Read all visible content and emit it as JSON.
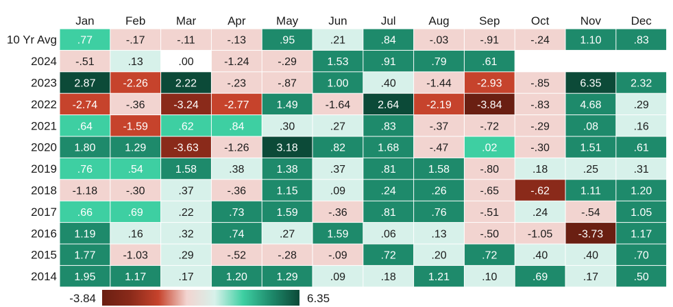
{
  "chart_data": {
    "type": "heatmap",
    "title": "",
    "columns": [
      "Jan",
      "Feb",
      "Mar",
      "Apr",
      "May",
      "Jun",
      "Jul",
      "Aug",
      "Sep",
      "Oct",
      "Nov",
      "Dec"
    ],
    "rows": [
      "10 Yr Avg",
      "2024",
      "2023",
      "2022",
      "2021",
      "2020",
      "2019",
      "2018",
      "2017",
      "2016",
      "2015",
      "2014"
    ],
    "values": [
      [
        0.77,
        -0.17,
        -0.11,
        -0.13,
        0.95,
        0.21,
        0.84,
        -0.03,
        -0.91,
        -0.24,
        1.1,
        0.83
      ],
      [
        -0.51,
        0.13,
        0.0,
        -1.24,
        -0.29,
        1.53,
        0.91,
        0.79,
        0.61,
        null,
        null,
        null
      ],
      [
        2.87,
        -2.26,
        2.22,
        -0.23,
        -0.87,
        1.0,
        0.4,
        -1.44,
        -2.93,
        -0.85,
        6.35,
        2.32
      ],
      [
        -2.74,
        -0.36,
        -3.24,
        -2.77,
        1.49,
        -1.64,
        2.64,
        -2.19,
        -3.84,
        -0.83,
        4.68,
        0.29
      ],
      [
        0.64,
        -1.59,
        0.62,
        0.84,
        0.3,
        0.27,
        0.83,
        -0.37,
        -0.72,
        -0.29,
        0.08,
        0.16
      ],
      [
        1.8,
        1.29,
        -3.63,
        -1.26,
        3.18,
        0.82,
        1.68,
        -0.47,
        0.02,
        -0.3,
        1.51,
        0.61
      ],
      [
        0.76,
        0.54,
        1.58,
        0.38,
        1.38,
        0.37,
        0.81,
        1.58,
        -0.8,
        0.18,
        0.25,
        0.31
      ],
      [
        -1.18,
        -0.3,
        0.37,
        -0.36,
        1.15,
        0.09,
        0.24,
        0.26,
        -0.65,
        -0.62,
        1.11,
        1.2
      ],
      [
        0.66,
        0.69,
        0.22,
        0.73,
        1.59,
        -0.36,
        0.81,
        0.76,
        -0.51,
        0.24,
        -0.54,
        1.05
      ],
      [
        1.19,
        0.16,
        0.32,
        0.74,
        0.27,
        1.59,
        0.06,
        0.13,
        -0.5,
        -1.05,
        -3.73,
        1.17
      ],
      [
        1.77,
        -1.03,
        0.29,
        -0.52,
        -0.28,
        -0.09,
        0.72,
        0.2,
        0.72,
        0.4,
        0.4,
        0.7
      ],
      [
        1.95,
        1.17,
        0.17,
        1.2,
        1.29,
        0.09,
        0.18,
        1.21,
        0.1,
        0.69,
        0.17,
        0.5
      ]
    ],
    "labels": [
      [
        ".77",
        "-.17",
        "-.11",
        "-.13",
        ".95",
        ".21",
        ".84",
        "-.03",
        "-.91",
        "-.24",
        "1.10",
        ".83"
      ],
      [
        "-.51",
        ".13",
        ".00",
        "-1.24",
        "-.29",
        "1.53",
        ".91",
        ".79",
        ".61",
        null,
        null,
        null
      ],
      [
        "2.87",
        "-2.26",
        "2.22",
        "-.23",
        "-.87",
        "1.00",
        ".40",
        "-1.44",
        "-2.93",
        "-.85",
        "6.35",
        "2.32"
      ],
      [
        "-2.74",
        "-.36",
        "-3.24",
        "-2.77",
        "1.49",
        "-1.64",
        "2.64",
        "-2.19",
        "-3.84",
        "-.83",
        "4.68",
        ".29"
      ],
      [
        ".64",
        "-1.59",
        ".62",
        ".84",
        ".30",
        ".27",
        ".83",
        "-.37",
        "-.72",
        "-.29",
        ".08",
        ".16"
      ],
      [
        "1.80",
        "1.29",
        "-3.63",
        "-1.26",
        "3.18",
        ".82",
        "1.68",
        "-.47",
        ".02",
        "-.30",
        "1.51",
        ".61"
      ],
      [
        ".76",
        ".54",
        "1.58",
        ".38",
        "1.38",
        ".37",
        ".81",
        "1.58",
        "-.80",
        ".18",
        ".25",
        ".31"
      ],
      [
        "-1.18",
        "-.30",
        ".37",
        "-.36",
        "1.15",
        ".09",
        ".24",
        ".26",
        "-.65",
        "-.62",
        "1.11",
        "1.20"
      ],
      [
        ".66",
        ".69",
        ".22",
        ".73",
        "1.59",
        "-.36",
        ".81",
        ".76",
        "-.51",
        ".24",
        "-.54",
        "1.05"
      ],
      [
        "1.19",
        ".16",
        ".32",
        ".74",
        ".27",
        "1.59",
        ".06",
        ".13",
        "-.50",
        "-1.05",
        "-3.73",
        "1.17"
      ],
      [
        "1.77",
        "-1.03",
        ".29",
        "-.52",
        "-.28",
        "-.09",
        ".72",
        ".20",
        ".72",
        ".40",
        ".40",
        ".70"
      ],
      [
        "1.95",
        "1.17",
        ".17",
        "1.20",
        "1.29",
        ".09",
        ".18",
        "1.21",
        ".10",
        ".69",
        ".17",
        ".50"
      ]
    ],
    "cell_colors": [
      [
        "#3ecfa2",
        "#f2d4d0",
        "#f2d4d0",
        "#f2d4d0",
        "#1e8a6b",
        "#d7f1ea",
        "#1e8a6b",
        "#f2d4d0",
        "#f2d4d0",
        "#f2d4d0",
        "#1e8a6b",
        "#1e8a6b"
      ],
      [
        "#f2d4d0",
        "#d7f1ea",
        "#ffffff",
        "#f2d4d0",
        "#f2d4d0",
        "#1e8a6b",
        "#1e8a6b",
        "#1e8a6b",
        "#1e8a6b",
        null,
        null,
        null
      ],
      [
        "#0c4a38",
        "#c6432c",
        "#0c4a38",
        "#f2d4d0",
        "#f2d4d0",
        "#1e8a6b",
        "#d7f1ea",
        "#f2d4d0",
        "#c6432c",
        "#f2d4d0",
        "#0c4a38",
        "#1e8a6b"
      ],
      [
        "#c6432c",
        "#f2d4d0",
        "#8a2a1a",
        "#c6432c",
        "#1e8a6b",
        "#f2d4d0",
        "#0c4a38",
        "#c6432c",
        "#6a1f12",
        "#f2d4d0",
        "#1e8a6b",
        "#d7f1ea"
      ],
      [
        "#3ecfa2",
        "#c6432c",
        "#3ecfa2",
        "#3ecfa2",
        "#d7f1ea",
        "#d7f1ea",
        "#1e8a6b",
        "#f2d4d0",
        "#f2d4d0",
        "#f2d4d0",
        "#1e8a6b",
        "#d7f1ea"
      ],
      [
        "#1e8a6b",
        "#1e8a6b",
        "#8a2a1a",
        "#f2d4d0",
        "#0c4a38",
        "#1e8a6b",
        "#1e8a6b",
        "#f2d4d0",
        "#3ecfa2",
        "#f2d4d0",
        "#1e8a6b",
        "#1e8a6b"
      ],
      [
        "#3ecfa2",
        "#3ecfa2",
        "#1e8a6b",
        "#d7f1ea",
        "#1e8a6b",
        "#d7f1ea",
        "#1e8a6b",
        "#1e8a6b",
        "#f2d4d0",
        "#d7f1ea",
        "#d7f1ea",
        "#d7f1ea"
      ],
      [
        "#f2d4d0",
        "#f2d4d0",
        "#d7f1ea",
        "#f2d4d0",
        "#1e8a6b",
        "#d7f1ea",
        "#1e8a6b",
        "#1e8a6b",
        "#f2d4d0",
        "#8a2a1a",
        "#1e8a6b",
        "#1e8a6b"
      ],
      [
        "#3ecfa2",
        "#3ecfa2",
        "#d7f1ea",
        "#1e8a6b",
        "#1e8a6b",
        "#f2d4d0",
        "#1e8a6b",
        "#1e8a6b",
        "#f2d4d0",
        "#d7f1ea",
        "#f2d4d0",
        "#1e8a6b"
      ],
      [
        "#1e8a6b",
        "#d7f1ea",
        "#d7f1ea",
        "#1e8a6b",
        "#d7f1ea",
        "#1e8a6b",
        "#d7f1ea",
        "#d7f1ea",
        "#f2d4d0",
        "#f2d4d0",
        "#6a1f12",
        "#1e8a6b"
      ],
      [
        "#1e8a6b",
        "#f2d4d0",
        "#d7f1ea",
        "#f2d4d0",
        "#f2d4d0",
        "#f2d4d0",
        "#1e8a6b",
        "#d7f1ea",
        "#1e8a6b",
        "#d7f1ea",
        "#d7f1ea",
        "#1e8a6b"
      ],
      [
        "#1e8a6b",
        "#1e8a6b",
        "#d7f1ea",
        "#1e8a6b",
        "#1e8a6b",
        "#d7f1ea",
        "#d7f1ea",
        "#1e8a6b",
        "#d7f1ea",
        "#1e8a6b",
        "#d7f1ea",
        "#1e8a6b"
      ]
    ],
    "text_colors": [
      [
        "#ffffff",
        "#1a1a1a",
        "#1a1a1a",
        "#1a1a1a",
        "#ffffff",
        "#1a1a1a",
        "#ffffff",
        "#1a1a1a",
        "#1a1a1a",
        "#1a1a1a",
        "#ffffff",
        "#ffffff"
      ],
      [
        "#1a1a1a",
        "#1a1a1a",
        "#1a1a1a",
        "#1a1a1a",
        "#1a1a1a",
        "#ffffff",
        "#ffffff",
        "#ffffff",
        "#ffffff",
        null,
        null,
        null
      ],
      [
        "#ffffff",
        "#ffffff",
        "#ffffff",
        "#1a1a1a",
        "#1a1a1a",
        "#ffffff",
        "#1a1a1a",
        "#1a1a1a",
        "#ffffff",
        "#1a1a1a",
        "#ffffff",
        "#ffffff"
      ],
      [
        "#ffffff",
        "#1a1a1a",
        "#ffffff",
        "#ffffff",
        "#ffffff",
        "#1a1a1a",
        "#ffffff",
        "#ffffff",
        "#ffffff",
        "#1a1a1a",
        "#ffffff",
        "#1a1a1a"
      ],
      [
        "#ffffff",
        "#ffffff",
        "#ffffff",
        "#ffffff",
        "#1a1a1a",
        "#1a1a1a",
        "#ffffff",
        "#1a1a1a",
        "#1a1a1a",
        "#1a1a1a",
        "#ffffff",
        "#1a1a1a"
      ],
      [
        "#ffffff",
        "#ffffff",
        "#ffffff",
        "#1a1a1a",
        "#ffffff",
        "#ffffff",
        "#ffffff",
        "#1a1a1a",
        "#ffffff",
        "#1a1a1a",
        "#ffffff",
        "#ffffff"
      ],
      [
        "#ffffff",
        "#ffffff",
        "#ffffff",
        "#1a1a1a",
        "#ffffff",
        "#1a1a1a",
        "#ffffff",
        "#ffffff",
        "#1a1a1a",
        "#1a1a1a",
        "#1a1a1a",
        "#1a1a1a"
      ],
      [
        "#1a1a1a",
        "#1a1a1a",
        "#1a1a1a",
        "#1a1a1a",
        "#ffffff",
        "#1a1a1a",
        "#ffffff",
        "#ffffff",
        "#1a1a1a",
        "#ffffff",
        "#ffffff",
        "#ffffff"
      ],
      [
        "#ffffff",
        "#ffffff",
        "#1a1a1a",
        "#ffffff",
        "#ffffff",
        "#1a1a1a",
        "#ffffff",
        "#ffffff",
        "#1a1a1a",
        "#1a1a1a",
        "#1a1a1a",
        "#ffffff"
      ],
      [
        "#ffffff",
        "#1a1a1a",
        "#1a1a1a",
        "#ffffff",
        "#1a1a1a",
        "#ffffff",
        "#1a1a1a",
        "#1a1a1a",
        "#1a1a1a",
        "#1a1a1a",
        "#ffffff",
        "#ffffff"
      ],
      [
        "#ffffff",
        "#1a1a1a",
        "#1a1a1a",
        "#1a1a1a",
        "#1a1a1a",
        "#1a1a1a",
        "#ffffff",
        "#1a1a1a",
        "#ffffff",
        "#1a1a1a",
        "#1a1a1a",
        "#ffffff"
      ],
      [
        "#ffffff",
        "#ffffff",
        "#1a1a1a",
        "#ffffff",
        "#ffffff",
        "#1a1a1a",
        "#1a1a1a",
        "#ffffff",
        "#1a1a1a",
        "#ffffff",
        "#1a1a1a",
        "#ffffff"
      ]
    ],
    "colorbar": {
      "min": -3.84,
      "max": 6.35,
      "min_label": "-3.84",
      "max_label": "6.35",
      "colors": [
        "#6a1f12",
        "#8a2a1a",
        "#c6432c",
        "#f2d4d0",
        "#d7f1ea",
        "#3ecfa2",
        "#1e8a6b",
        "#0c4a38"
      ]
    },
    "grid": false,
    "legend": "bottom-left colorbar"
  }
}
